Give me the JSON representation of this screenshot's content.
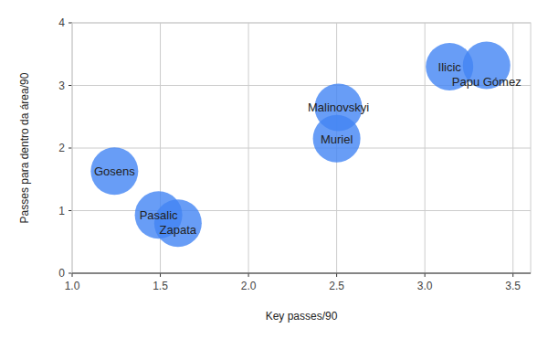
{
  "chart_data": {
    "type": "scatter",
    "x_label": "Key passes/90",
    "y_label": "Passes para dentro da área/90",
    "labels": [
      "Gosens",
      "Pasalic",
      "Zapata",
      "Malinovskyi",
      "Muriel",
      "Ilicic",
      "Papu Gómez"
    ],
    "x": [
      1.24,
      1.49,
      1.6,
      2.51,
      2.5,
      3.14,
      3.35
    ],
    "values": [
      1.63,
      0.93,
      0.8,
      2.65,
      2.15,
      3.3,
      3.32
    ],
    "color": "#4285f4",
    "marker": "circle",
    "xlim": [
      1.0,
      3.6
    ],
    "xticks": [
      {
        "value": 1.0,
        "label": "1.0"
      },
      1.5,
      {
        "value": 2.0,
        "label": "2.0"
      },
      2.5,
      {
        "value": 3.0,
        "label": "3.0"
      },
      3.5
    ],
    "ylim": [
      0,
      4
    ],
    "yticks": [
      0,
      1,
      2,
      3,
      4
    ],
    "grid": true,
    "data_labels": true
  }
}
